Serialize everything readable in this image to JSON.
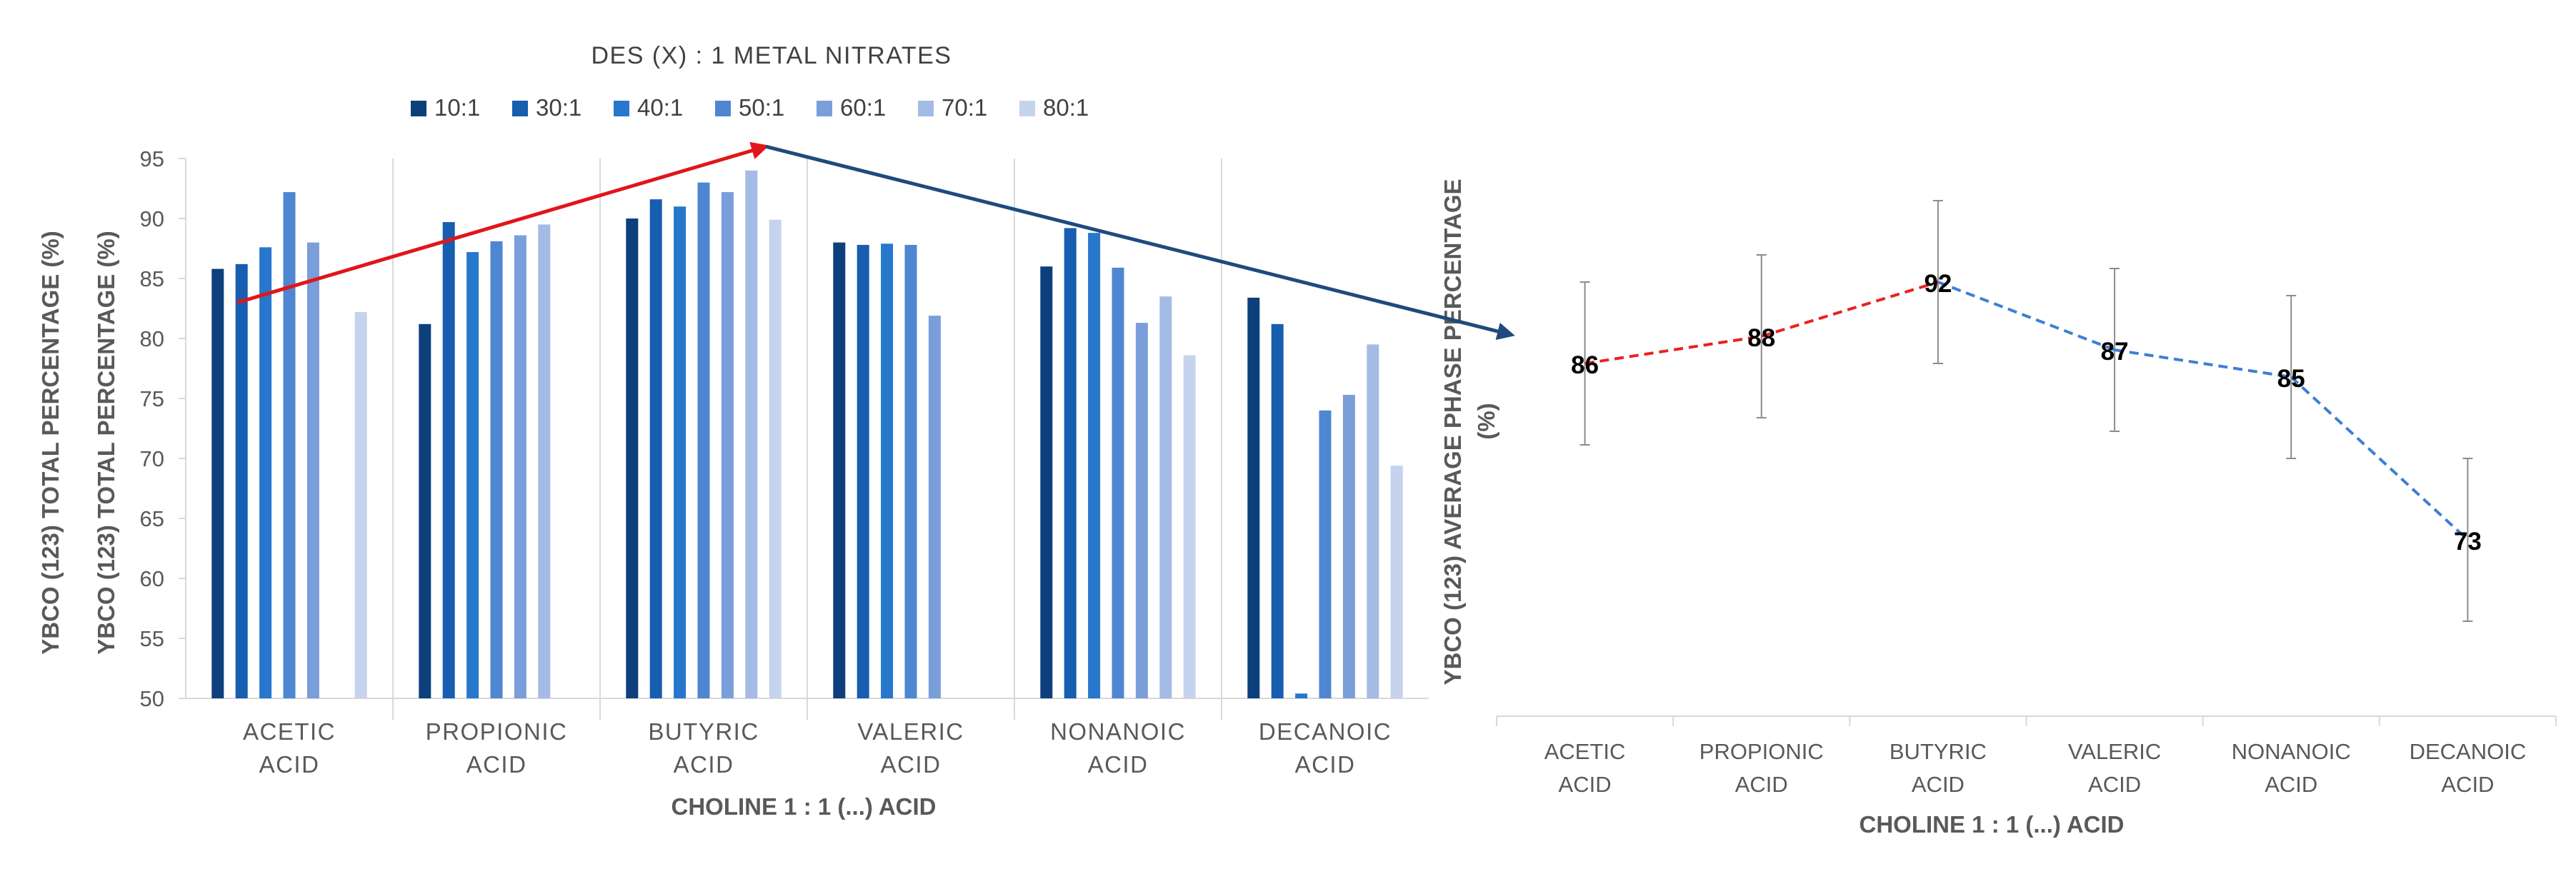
{
  "chart_data": [
    {
      "type": "bar",
      "legend_title": "DES (X) : 1 METAL NITRATES",
      "ylabel_outer": "YBCO (123) TOTAL PERCENTAGE (%)",
      "ylabel_inner": "YBCO (123) TOTAL PERCENTAGE (%)",
      "xlabel": "CHOLINE 1 : 1 (...) ACID",
      "ylim": [
        50,
        95
      ],
      "yticks": [
        "50",
        "55",
        "60",
        "65",
        "70",
        "75",
        "80",
        "85",
        "90",
        "95"
      ],
      "categories": [
        [
          "ACETIC",
          "ACID"
        ],
        [
          "PROPIONIC",
          "ACID"
        ],
        [
          "BUTYRIC",
          "ACID"
        ],
        [
          "VALERIC",
          "ACID"
        ],
        [
          "NONANOIC",
          "ACID"
        ],
        [
          "DECANOIC",
          "ACID"
        ]
      ],
      "series": [
        {
          "name": "10:1",
          "color": "#0D3F7D",
          "values": [
            85.8,
            81.2,
            90.0,
            88.0,
            86.0,
            83.4
          ]
        },
        {
          "name": "30:1",
          "color": "#175DB0",
          "values": [
            86.2,
            89.7,
            91.6,
            87.8,
            89.2,
            81.2
          ]
        },
        {
          "name": "40:1",
          "color": "#2777CC",
          "values": [
            87.6,
            87.2,
            91.0,
            87.9,
            88.8,
            50.4
          ]
        },
        {
          "name": "50:1",
          "color": "#4F86D1",
          "values": [
            92.2,
            88.1,
            93.0,
            87.8,
            85.9,
            74.0
          ]
        },
        {
          "name": "60:1",
          "color": "#7A9ED9",
          "values": [
            88.0,
            88.6,
            92.2,
            81.9,
            81.3,
            75.3
          ]
        },
        {
          "name": "70:1",
          "color": "#A4BBE5",
          "values": [
            null,
            89.5,
            94.0,
            null,
            83.5,
            79.5
          ]
        },
        {
          "name": "80:1",
          "color": "#C6D3EE",
          "values": [
            82.2,
            null,
            89.9,
            null,
            78.6,
            69.4
          ]
        }
      ],
      "trend_arrows": [
        {
          "from": [
            -0.25,
            83.0
          ],
          "to": [
            2.3,
            96.0
          ],
          "color": "#E0161A"
        },
        {
          "from": [
            2.3,
            96.0
          ],
          "to": [
            5.9,
            80.3
          ],
          "color": "#1F4A7E"
        }
      ]
    },
    {
      "type": "line",
      "ylabel": [
        "YBCO (123) AVERAGE PHASE PERCENTAGE",
        "(%)"
      ],
      "xlabel": "CHOLINE 1 : 1 (...) ACID",
      "ylim": [
        60,
        105
      ],
      "categories": [
        [
          "ACETIC",
          "ACID"
        ],
        [
          "PROPIONIC",
          "ACID"
        ],
        [
          "BUTYRIC",
          "ACID"
        ],
        [
          "VALERIC",
          "ACID"
        ],
        [
          "NONANOIC",
          "ACID"
        ],
        [
          "DECANOIC",
          "ACID"
        ]
      ],
      "values": [
        86,
        88,
        92,
        87,
        85,
        73
      ],
      "data_labels": [
        "86",
        "88",
        "92",
        "87",
        "85",
        "73"
      ],
      "errors": [
        6.0,
        6.0,
        6.0,
        6.0,
        6.0,
        6.0
      ],
      "segment_colors": [
        "#E8221F",
        "#E8221F",
        "#3D7FD1",
        "#3D7FD1",
        "#3D7FD1"
      ]
    }
  ]
}
